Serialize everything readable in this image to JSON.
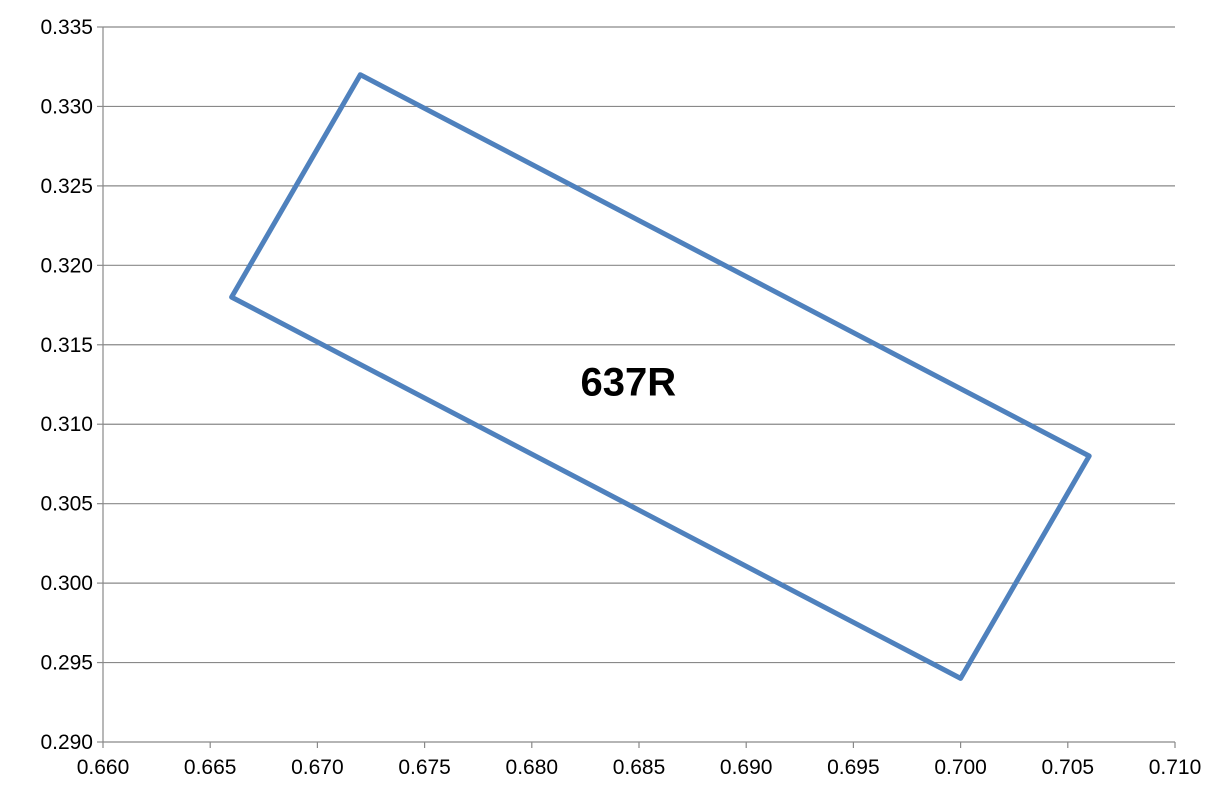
{
  "chart_data": {
    "type": "line",
    "title": "",
    "xlabel": "",
    "ylabel": "",
    "xlim": [
      0.66,
      0.71
    ],
    "ylim": [
      0.29,
      0.335
    ],
    "xticks": [
      "0.660",
      "0.665",
      "0.670",
      "0.675",
      "0.680",
      "0.685",
      "0.690",
      "0.695",
      "0.700",
      "0.705",
      "0.710"
    ],
    "yticks": [
      "0.290",
      "0.295",
      "0.300",
      "0.305",
      "0.310",
      "0.315",
      "0.320",
      "0.325",
      "0.330",
      "0.335"
    ],
    "grid": "horizontal",
    "legend": "none",
    "series": [
      {
        "color": "#4f81bd",
        "points": [
          {
            "x": 0.672,
            "y": 0.332
          },
          {
            "x": 0.706,
            "y": 0.308
          },
          {
            "x": 0.7,
            "y": 0.294
          },
          {
            "x": 0.666,
            "y": 0.318
          },
          {
            "x": 0.672,
            "y": 0.332
          }
        ]
      }
    ],
    "annotations": [
      {
        "text": "637R",
        "x": 0.6845,
        "y": 0.3127
      }
    ]
  },
  "colors": {
    "line": "#4f81bd",
    "grid": "#898989",
    "axis": "#898989"
  }
}
